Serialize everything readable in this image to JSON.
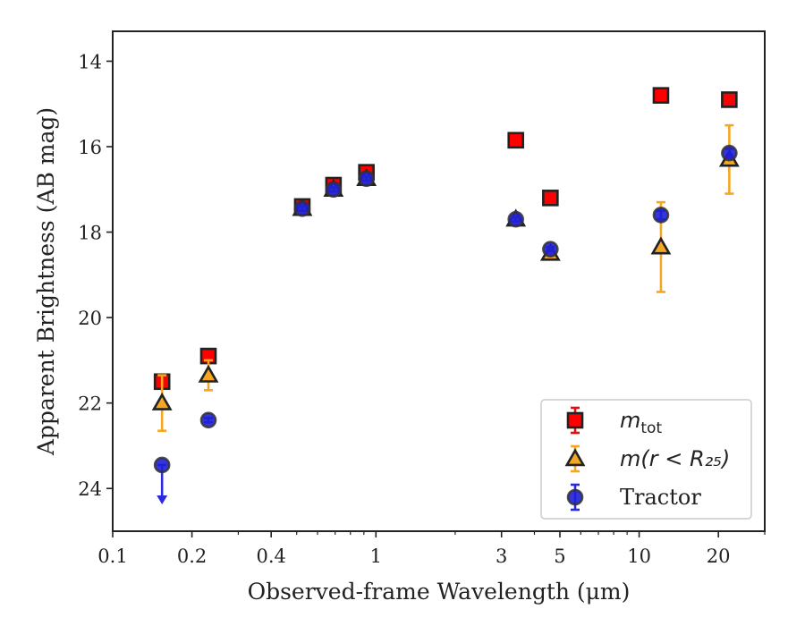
{
  "chart_data": {
    "type": "scatter",
    "xlabel": "Observed-frame Wavelength (μm)",
    "ylabel": "Apparent Brightness (AB mag)",
    "xscale": "log",
    "xlim": [
      0.1,
      30
    ],
    "ylim": [
      25,
      13.3
    ],
    "y_inverted": true,
    "x_ticks": [
      0.1,
      0.2,
      0.4,
      1,
      3,
      5,
      10,
      20
    ],
    "x_tick_labels": [
      "0.1",
      "0.2",
      "0.4",
      "1",
      "3",
      "5",
      "10",
      "20"
    ],
    "y_ticks": [
      14,
      16,
      18,
      20,
      22,
      24
    ],
    "y_tick_labels": [
      "14",
      "16",
      "18",
      "20",
      "22",
      "24"
    ],
    "grid": false,
    "legend_position": "lower-right",
    "series": [
      {
        "legend": {
          "main": "m",
          "sub": "tot",
          "rest": ""
        },
        "marker": "square",
        "face_color": "#ff0000",
        "edge_color": "#222222",
        "error_color": "#e01010",
        "points": [
          {
            "x": 0.154,
            "y": 21.5,
            "err": 0.0
          },
          {
            "x": 0.231,
            "y": 20.9,
            "err": 0.0
          },
          {
            "x": 0.525,
            "y": 17.4,
            "err": 0.1
          },
          {
            "x": 0.69,
            "y": 16.9,
            "err": 0.1
          },
          {
            "x": 0.92,
            "y": 16.6,
            "err": 0.1
          },
          {
            "x": 3.4,
            "y": 15.85,
            "err": 0.0
          },
          {
            "x": 4.6,
            "y": 17.2,
            "err": 0.0
          },
          {
            "x": 12.1,
            "y": 14.8,
            "err": 0.0
          },
          {
            "x": 22.0,
            "y": 14.9,
            "err": 0.0
          }
        ]
      },
      {
        "legend": {
          "main": "m",
          "sub": "",
          "rest": "(r < R₂₅)"
        },
        "marker": "triangle",
        "face_color": "#f5a623",
        "edge_color": "#222222",
        "error_color": "#f5a623",
        "points": [
          {
            "x": 0.154,
            "y": 22.0,
            "err": 0.65
          },
          {
            "x": 0.231,
            "y": 21.35,
            "err": 0.35
          },
          {
            "x": 0.525,
            "y": 17.45,
            "err": 0.05
          },
          {
            "x": 0.69,
            "y": 17.0,
            "err": 0.05
          },
          {
            "x": 0.92,
            "y": 16.75,
            "err": 0.05
          },
          {
            "x": 3.4,
            "y": 17.7,
            "err": 0.05
          },
          {
            "x": 4.6,
            "y": 18.5,
            "err": 0.05
          },
          {
            "x": 12.1,
            "y": 18.35,
            "err": 1.05
          },
          {
            "x": 22.0,
            "y": 16.3,
            "err": 0.8
          }
        ]
      },
      {
        "legend": {
          "main": "Tractor",
          "sub": "",
          "rest": ""
        },
        "marker": "circle",
        "face_color": "#1f1fd6",
        "edge_color": "#333333",
        "error_color": "#2a2ae0",
        "points": [
          {
            "x": 0.154,
            "y": 23.45,
            "err": 0.0,
            "upper_limit": true
          },
          {
            "x": 0.231,
            "y": 22.4,
            "err": 0.05
          },
          {
            "x": 0.525,
            "y": 17.45,
            "err": 0.05
          },
          {
            "x": 0.69,
            "y": 17.0,
            "err": 0.05
          },
          {
            "x": 0.92,
            "y": 16.75,
            "err": 0.05
          },
          {
            "x": 3.4,
            "y": 17.7,
            "err": 0.05
          },
          {
            "x": 4.6,
            "y": 18.4,
            "err": 0.05
          },
          {
            "x": 12.1,
            "y": 17.6,
            "err": 0.1
          },
          {
            "x": 22.0,
            "y": 16.15,
            "err": 0.1
          }
        ]
      }
    ]
  }
}
